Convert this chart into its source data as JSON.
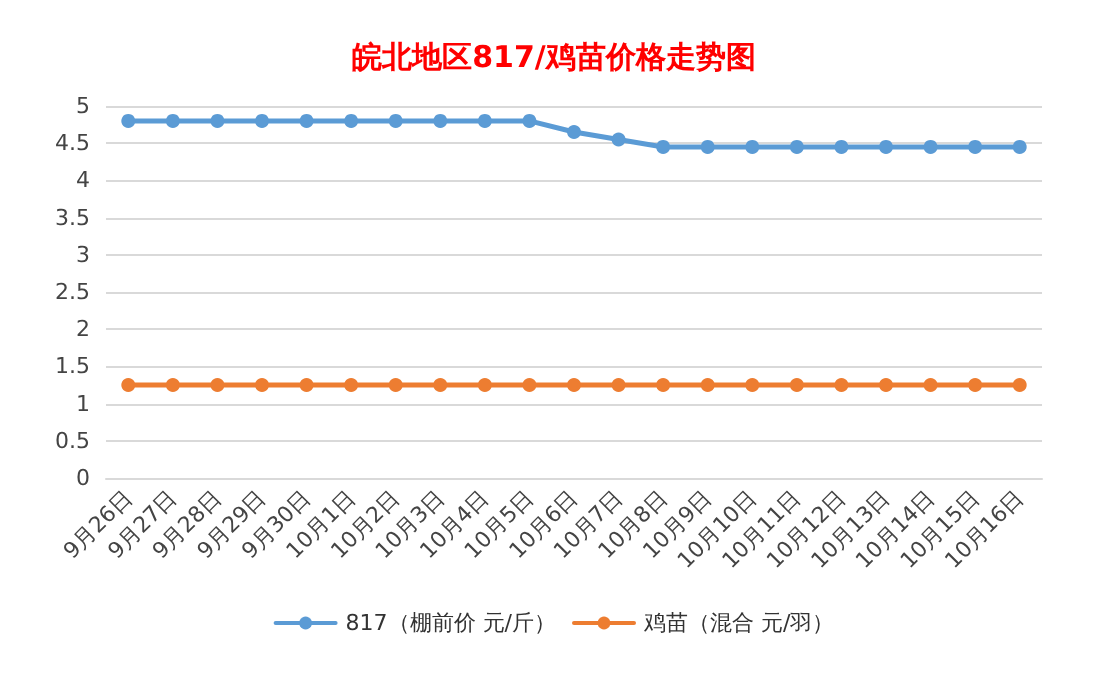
{
  "chart_data": {
    "type": "line",
    "title": "皖北地区817/鸡苗价格走势图",
    "categories": [
      "9月26日",
      "9月27日",
      "9月28日",
      "9月29日",
      "9月30日",
      "10月1日",
      "10月2日",
      "10月3日",
      "10月4日",
      "10月5日",
      "10月6日",
      "10月7日",
      "10月8日",
      "10月9日",
      "10月10日",
      "10月11日",
      "10月12日",
      "10月13日",
      "10月14日",
      "10月15日",
      "10月16日"
    ],
    "series": [
      {
        "name": "817（棚前价 元/斤）",
        "color": "#5b9bd5",
        "values": [
          4.8,
          4.8,
          4.8,
          4.8,
          4.8,
          4.8,
          4.8,
          4.8,
          4.8,
          4.8,
          4.65,
          4.55,
          4.45,
          4.45,
          4.45,
          4.45,
          4.45,
          4.45,
          4.45,
          4.45,
          4.45
        ]
      },
      {
        "name": "鸡苗（混合 元/羽）",
        "color": "#ed7d31",
        "values": [
          1.25,
          1.25,
          1.25,
          1.25,
          1.25,
          1.25,
          1.25,
          1.25,
          1.25,
          1.25,
          1.25,
          1.25,
          1.25,
          1.25,
          1.25,
          1.25,
          1.25,
          1.25,
          1.25,
          1.25,
          1.25
        ]
      }
    ],
    "ylim": [
      0,
      5
    ],
    "yticks": [
      0,
      0.5,
      1,
      1.5,
      2,
      2.5,
      3,
      3.5,
      4,
      4.5,
      5
    ],
    "grid": "y",
    "legend": "bottom",
    "marker": "circle",
    "line_style": "solid"
  }
}
